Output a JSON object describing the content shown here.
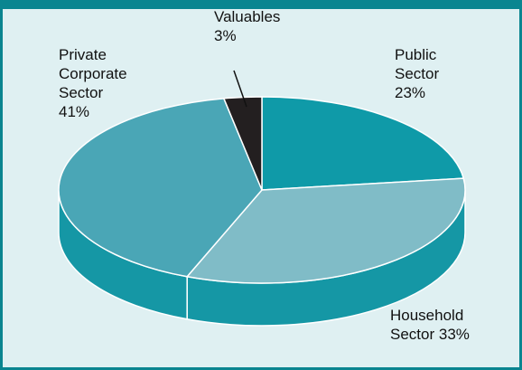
{
  "chart_data": {
    "type": "pie3d",
    "categories": [
      "Public Sector",
      "Household Sector",
      "Private Corporate Sector",
      "Valuables"
    ],
    "values": [
      23,
      33,
      41,
      3
    ],
    "value_labels": [
      "23%",
      "33%",
      "41%",
      "3%"
    ],
    "colors": [
      "#0f9aa8",
      "#80bcc7",
      "#4aa6b6",
      "#231f20"
    ],
    "side_color": "#1597a5"
  }
}
